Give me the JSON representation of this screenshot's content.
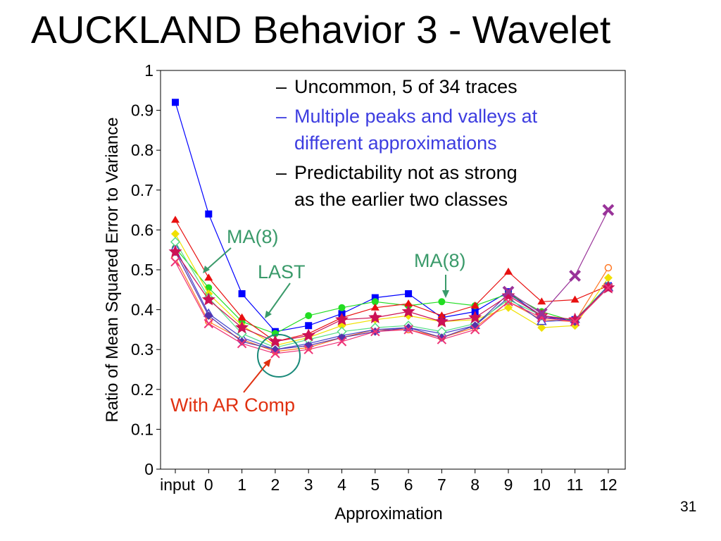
{
  "slide": {
    "title": "AUCKLAND Behavior 3 - Wavelet",
    "bullets": [
      {
        "text_lines": [
          "Uncommon, 5 of 34 traces"
        ],
        "color": "#000000"
      },
      {
        "text_lines": [
          "Multiple peaks and valleys at",
          "different approximations"
        ],
        "color": "#3d3de0"
      },
      {
        "text_lines": [
          "Predictability not as strong",
          "as the earlier two classes"
        ],
        "color": "#000000"
      }
    ],
    "slide_number": "31",
    "dash": "–"
  },
  "chart_data": {
    "type": "line",
    "xlabel": "Approximation",
    "ylabel": "Ratio of Mean Squared Error to Variance",
    "categories": [
      "input",
      "0",
      "1",
      "2",
      "3",
      "4",
      "5",
      "6",
      "7",
      "8",
      "9",
      "10",
      "11",
      "12"
    ],
    "ylim": [
      0,
      1
    ],
    "yticks": [
      "0",
      "0.1",
      "0.2",
      "0.3",
      "0.4",
      "0.5",
      "0.6",
      "0.7",
      "0.8",
      "0.9",
      "1"
    ],
    "grid": false,
    "series": [
      {
        "color": "#0000ff",
        "marker": "square",
        "values": [
          0.92,
          0.64,
          0.44,
          0.345,
          0.36,
          0.39,
          0.43,
          0.44,
          0.38,
          0.395,
          0.445,
          0.38,
          0.375,
          0.46
        ]
      },
      {
        "color": "#22dd22",
        "marker": "circle",
        "values": [
          0.555,
          0.455,
          0.37,
          0.34,
          0.385,
          0.405,
          0.42,
          0.41,
          0.42,
          0.41,
          0.44,
          0.395,
          0.37,
          0.455
        ]
      },
      {
        "color": "#e81010",
        "marker": "triangle",
        "values": [
          0.625,
          0.48,
          0.38,
          0.32,
          0.34,
          0.38,
          0.405,
          0.415,
          0.385,
          0.41,
          0.495,
          0.42,
          0.425,
          0.46
        ]
      },
      {
        "color": "#f0e000",
        "marker": "diamond",
        "values": [
          0.59,
          0.44,
          0.36,
          0.31,
          0.33,
          0.36,
          0.375,
          0.385,
          0.37,
          0.375,
          0.405,
          0.355,
          0.36,
          0.48
        ]
      },
      {
        "color": "#ff7722",
        "marker": "open-circle",
        "values": [
          0.53,
          0.37,
          0.325,
          0.295,
          0.305,
          0.33,
          0.35,
          0.35,
          0.33,
          0.355,
          0.42,
          0.375,
          0.37,
          0.505
        ]
      },
      {
        "color": "#4444cc",
        "marker": "open-triangle",
        "values": [
          0.555,
          0.39,
          0.33,
          0.3,
          0.315,
          0.335,
          0.35,
          0.355,
          0.34,
          0.36,
          0.43,
          0.37,
          0.375,
          0.455
        ]
      },
      {
        "color": "#55dd88",
        "marker": "open-diamond",
        "values": [
          0.57,
          0.43,
          0.34,
          0.305,
          0.325,
          0.345,
          0.355,
          0.36,
          0.345,
          0.365,
          0.425,
          0.385,
          0.375,
          0.46
        ]
      },
      {
        "color": "#5533aa",
        "marker": "diamond",
        "values": [
          0.545,
          0.385,
          0.32,
          0.3,
          0.31,
          0.33,
          0.345,
          0.355,
          0.33,
          0.36,
          0.44,
          0.385,
          0.37,
          0.46
        ]
      },
      {
        "color": "#cc1155",
        "marker": "star",
        "values": [
          0.545,
          0.425,
          0.355,
          0.32,
          0.335,
          0.375,
          0.38,
          0.395,
          0.37,
          0.38,
          0.435,
          0.385,
          0.375,
          0.455
        ]
      },
      {
        "color": "#ee3377",
        "marker": "box-x",
        "values": [
          0.52,
          0.365,
          0.315,
          0.29,
          0.3,
          0.32,
          0.345,
          0.35,
          0.325,
          0.35,
          0.42,
          0.38,
          0.37,
          0.455
        ]
      },
      {
        "color": "#993399",
        "marker": "x",
        "values": [
          null,
          null,
          null,
          null,
          null,
          null,
          null,
          null,
          null,
          null,
          0.445,
          0.39,
          0.485,
          0.65
        ]
      }
    ],
    "annotations": [
      {
        "text": "MA(8)",
        "color": "#3a9a6a"
      },
      {
        "text": "LAST",
        "color": "#3a9a6a"
      },
      {
        "text": "MA(8)",
        "color": "#3a9a6a"
      },
      {
        "text": "With AR Comp",
        "color": "#e03010"
      }
    ]
  }
}
